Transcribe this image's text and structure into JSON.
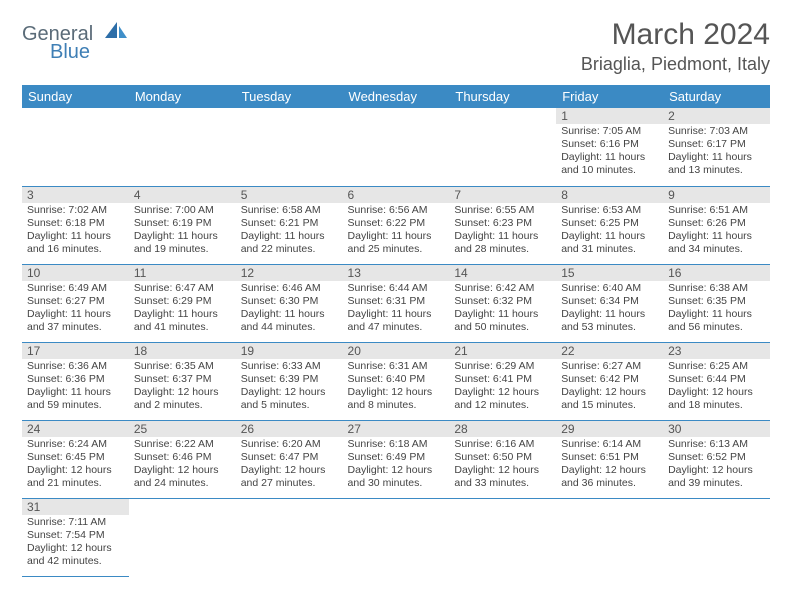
{
  "brand": {
    "name_part1": "General",
    "name_part2": "Blue"
  },
  "title": "March 2024",
  "location": "Briaglia, Piedmont, Italy",
  "colors": {
    "header_bg": "#3b8ac4",
    "header_text": "#ffffff",
    "daynum_bg": "#e6e6e6",
    "text": "#444444",
    "brand_gray": "#5a6b78",
    "brand_blue": "#3f7fb5"
  },
  "weekdays": [
    "Sunday",
    "Monday",
    "Tuesday",
    "Wednesday",
    "Thursday",
    "Friday",
    "Saturday"
  ],
  "weeks": [
    [
      null,
      null,
      null,
      null,
      null,
      {
        "n": "1",
        "sr": "Sunrise: 7:05 AM",
        "ss": "Sunset: 6:16 PM",
        "dl": "Daylight: 11 hours and 10 minutes."
      },
      {
        "n": "2",
        "sr": "Sunrise: 7:03 AM",
        "ss": "Sunset: 6:17 PM",
        "dl": "Daylight: 11 hours and 13 minutes."
      }
    ],
    [
      {
        "n": "3",
        "sr": "Sunrise: 7:02 AM",
        "ss": "Sunset: 6:18 PM",
        "dl": "Daylight: 11 hours and 16 minutes."
      },
      {
        "n": "4",
        "sr": "Sunrise: 7:00 AM",
        "ss": "Sunset: 6:19 PM",
        "dl": "Daylight: 11 hours and 19 minutes."
      },
      {
        "n": "5",
        "sr": "Sunrise: 6:58 AM",
        "ss": "Sunset: 6:21 PM",
        "dl": "Daylight: 11 hours and 22 minutes."
      },
      {
        "n": "6",
        "sr": "Sunrise: 6:56 AM",
        "ss": "Sunset: 6:22 PM",
        "dl": "Daylight: 11 hours and 25 minutes."
      },
      {
        "n": "7",
        "sr": "Sunrise: 6:55 AM",
        "ss": "Sunset: 6:23 PM",
        "dl": "Daylight: 11 hours and 28 minutes."
      },
      {
        "n": "8",
        "sr": "Sunrise: 6:53 AM",
        "ss": "Sunset: 6:25 PM",
        "dl": "Daylight: 11 hours and 31 minutes."
      },
      {
        "n": "9",
        "sr": "Sunrise: 6:51 AM",
        "ss": "Sunset: 6:26 PM",
        "dl": "Daylight: 11 hours and 34 minutes."
      }
    ],
    [
      {
        "n": "10",
        "sr": "Sunrise: 6:49 AM",
        "ss": "Sunset: 6:27 PM",
        "dl": "Daylight: 11 hours and 37 minutes."
      },
      {
        "n": "11",
        "sr": "Sunrise: 6:47 AM",
        "ss": "Sunset: 6:29 PM",
        "dl": "Daylight: 11 hours and 41 minutes."
      },
      {
        "n": "12",
        "sr": "Sunrise: 6:46 AM",
        "ss": "Sunset: 6:30 PM",
        "dl": "Daylight: 11 hours and 44 minutes."
      },
      {
        "n": "13",
        "sr": "Sunrise: 6:44 AM",
        "ss": "Sunset: 6:31 PM",
        "dl": "Daylight: 11 hours and 47 minutes."
      },
      {
        "n": "14",
        "sr": "Sunrise: 6:42 AM",
        "ss": "Sunset: 6:32 PM",
        "dl": "Daylight: 11 hours and 50 minutes."
      },
      {
        "n": "15",
        "sr": "Sunrise: 6:40 AM",
        "ss": "Sunset: 6:34 PM",
        "dl": "Daylight: 11 hours and 53 minutes."
      },
      {
        "n": "16",
        "sr": "Sunrise: 6:38 AM",
        "ss": "Sunset: 6:35 PM",
        "dl": "Daylight: 11 hours and 56 minutes."
      }
    ],
    [
      {
        "n": "17",
        "sr": "Sunrise: 6:36 AM",
        "ss": "Sunset: 6:36 PM",
        "dl": "Daylight: 11 hours and 59 minutes."
      },
      {
        "n": "18",
        "sr": "Sunrise: 6:35 AM",
        "ss": "Sunset: 6:37 PM",
        "dl": "Daylight: 12 hours and 2 minutes."
      },
      {
        "n": "19",
        "sr": "Sunrise: 6:33 AM",
        "ss": "Sunset: 6:39 PM",
        "dl": "Daylight: 12 hours and 5 minutes."
      },
      {
        "n": "20",
        "sr": "Sunrise: 6:31 AM",
        "ss": "Sunset: 6:40 PM",
        "dl": "Daylight: 12 hours and 8 minutes."
      },
      {
        "n": "21",
        "sr": "Sunrise: 6:29 AM",
        "ss": "Sunset: 6:41 PM",
        "dl": "Daylight: 12 hours and 12 minutes."
      },
      {
        "n": "22",
        "sr": "Sunrise: 6:27 AM",
        "ss": "Sunset: 6:42 PM",
        "dl": "Daylight: 12 hours and 15 minutes."
      },
      {
        "n": "23",
        "sr": "Sunrise: 6:25 AM",
        "ss": "Sunset: 6:44 PM",
        "dl": "Daylight: 12 hours and 18 minutes."
      }
    ],
    [
      {
        "n": "24",
        "sr": "Sunrise: 6:24 AM",
        "ss": "Sunset: 6:45 PM",
        "dl": "Daylight: 12 hours and 21 minutes."
      },
      {
        "n": "25",
        "sr": "Sunrise: 6:22 AM",
        "ss": "Sunset: 6:46 PM",
        "dl": "Daylight: 12 hours and 24 minutes."
      },
      {
        "n": "26",
        "sr": "Sunrise: 6:20 AM",
        "ss": "Sunset: 6:47 PM",
        "dl": "Daylight: 12 hours and 27 minutes."
      },
      {
        "n": "27",
        "sr": "Sunrise: 6:18 AM",
        "ss": "Sunset: 6:49 PM",
        "dl": "Daylight: 12 hours and 30 minutes."
      },
      {
        "n": "28",
        "sr": "Sunrise: 6:16 AM",
        "ss": "Sunset: 6:50 PM",
        "dl": "Daylight: 12 hours and 33 minutes."
      },
      {
        "n": "29",
        "sr": "Sunrise: 6:14 AM",
        "ss": "Sunset: 6:51 PM",
        "dl": "Daylight: 12 hours and 36 minutes."
      },
      {
        "n": "30",
        "sr": "Sunrise: 6:13 AM",
        "ss": "Sunset: 6:52 PM",
        "dl": "Daylight: 12 hours and 39 minutes."
      }
    ],
    [
      {
        "n": "31",
        "sr": "Sunrise: 7:11 AM",
        "ss": "Sunset: 7:54 PM",
        "dl": "Daylight: 12 hours and 42 minutes."
      },
      null,
      null,
      null,
      null,
      null,
      null
    ]
  ]
}
